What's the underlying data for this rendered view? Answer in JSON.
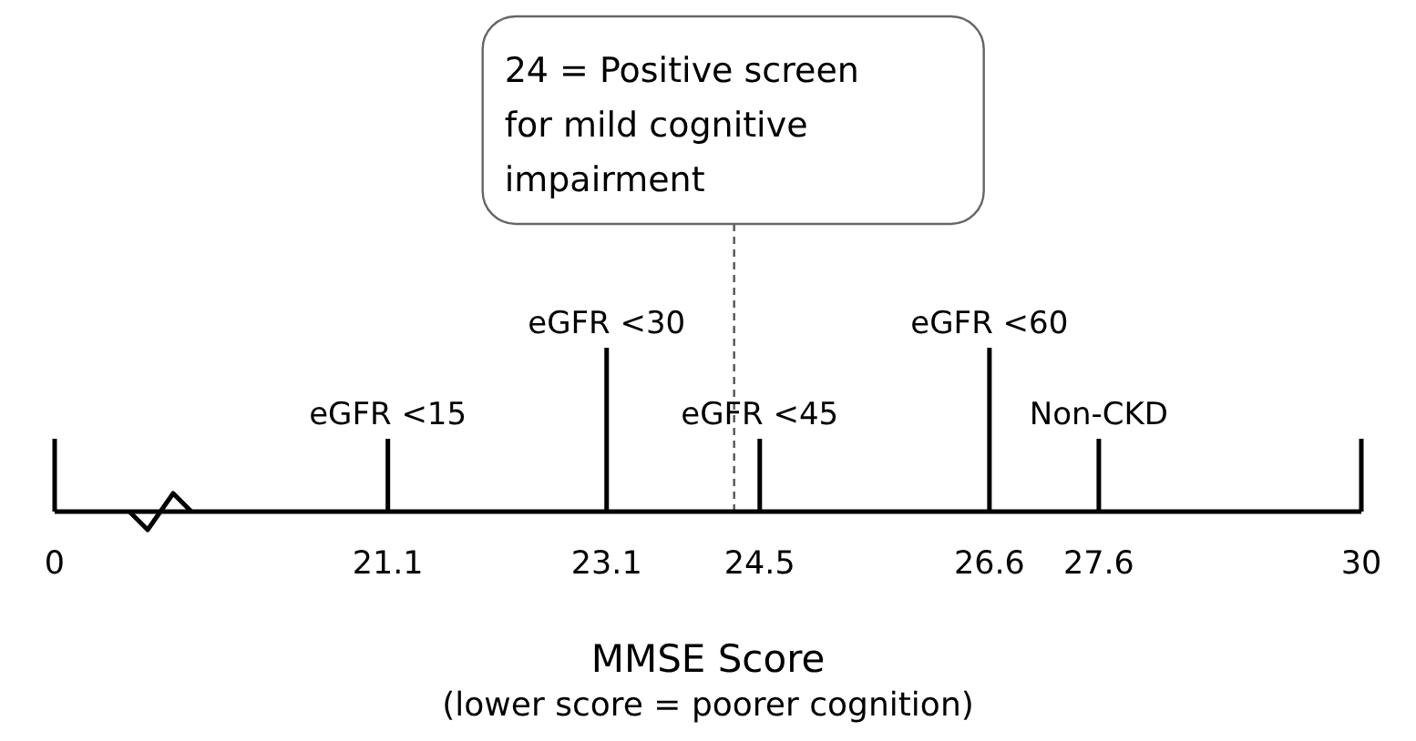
{
  "chart_data": {
    "type": "other",
    "xlabel": "MMSE Score",
    "categories": [
      null,
      "eGFR <15",
      "eGFR <30",
      "eGFR <45",
      "eGFR <60",
      "Non-CKD",
      null
    ],
    "values": [
      0,
      21.1,
      23.1,
      24.5,
      26.6,
      27.6,
      30
    ],
    "data_labels": true,
    "annotations": [
      "24 = Positive screen for mild cognitive impairment",
      "(lower score = poorer cognition)"
    ]
  }
}
